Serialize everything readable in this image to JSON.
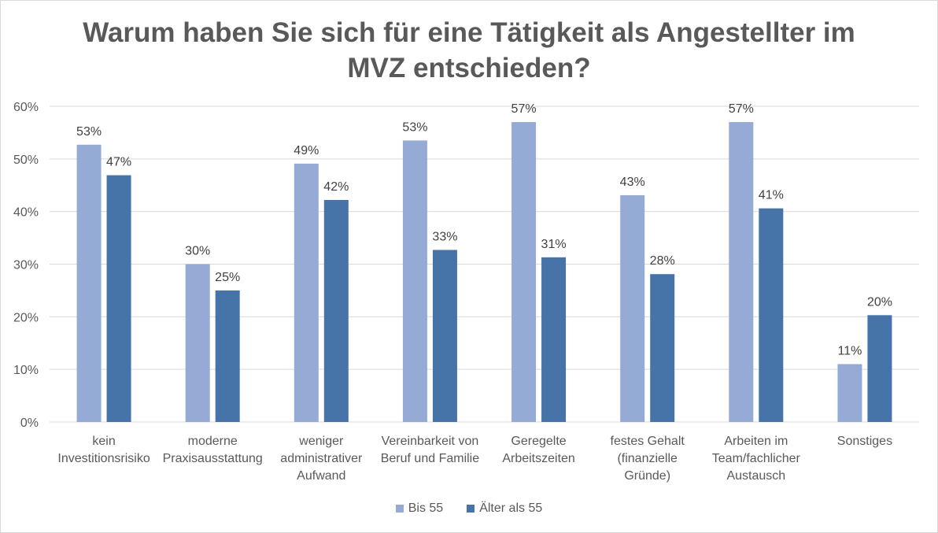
{
  "chart_data": {
    "type": "bar",
    "title": "Warum haben Sie sich für eine Tätigkeit als Angestellter im MVZ entschieden?",
    "title_lines": [
      "Warum haben Sie sich für eine Tätigkeit als Angestellter im",
      "MVZ entschieden?"
    ],
    "categories": [
      [
        "kein",
        "Investitionsrisiko"
      ],
      [
        "moderne",
        "Praxisausstattung"
      ],
      [
        "weniger",
        "administrativer",
        "Aufwand"
      ],
      [
        "Vereinbarkeit von",
        "Beruf und Familie"
      ],
      [
        "Geregelte",
        "Arbeitszeiten"
      ],
      [
        "festes Gehalt",
        "(finanzielle",
        "Gründe)"
      ],
      [
        "Arbeiten im",
        "Team/fachlicher",
        "Austausch"
      ],
      [
        "Sonstiges"
      ]
    ],
    "series": [
      {
        "name": "Bis 55",
        "color": "#95aad4",
        "values": [
          0.527,
          0.3,
          0.491,
          0.535,
          0.57,
          0.431,
          0.57,
          0.11
        ],
        "labels": [
          "53%",
          "30%",
          "49%",
          "53%",
          "57%",
          "43%",
          "57%",
          "11%"
        ]
      },
      {
        "name": "Älter als 55",
        "color": "#4674a9",
        "values": [
          0.469,
          0.25,
          0.422,
          0.327,
          0.313,
          0.281,
          0.406,
          0.203
        ],
        "labels": [
          "47%",
          "25%",
          "42%",
          "33%",
          "31%",
          "28%",
          "41%",
          "20%"
        ]
      }
    ],
    "ylim": [
      0,
      0.6
    ],
    "yticks": [
      "0%",
      "10%",
      "20%",
      "30%",
      "40%",
      "50%",
      "60%"
    ],
    "grid": true,
    "legend_position": "bottom"
  }
}
